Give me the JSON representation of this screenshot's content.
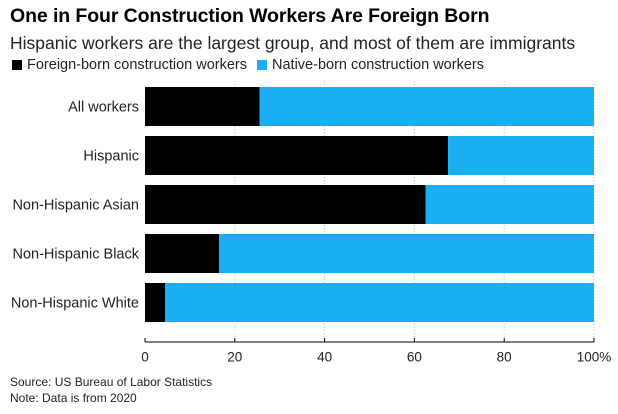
{
  "title": "One in Four Construction Workers Are Foreign Born",
  "subtitle": "Hispanic workers are the largest group, and most of them are immigrants",
  "legend": {
    "foreign_label": "Foreign-born construction workers",
    "native_label": "Native-born construction workers"
  },
  "colors": {
    "foreign": "#000000",
    "native": "#1aaef2"
  },
  "footer": {
    "source": "Source: US Bureau of Labor Statistics",
    "note": "Note: Data is from 2020"
  },
  "chart_data": {
    "type": "bar",
    "orientation": "horizontal",
    "stacked": true,
    "categories": [
      "All workers",
      "Hispanic",
      "Non-Hispanic Asian",
      "Non-Hispanic Black",
      "Non-Hispanic White"
    ],
    "series": [
      {
        "name": "Foreign-born construction workers",
        "values": [
          25.5,
          67.5,
          62.5,
          16.5,
          4.5
        ]
      },
      {
        "name": "Native-born construction workers",
        "values": [
          74.5,
          32.5,
          37.5,
          83.5,
          95.5
        ]
      }
    ],
    "xlim": [
      0,
      100
    ],
    "xticks": [
      0,
      20,
      40,
      60,
      80,
      100
    ],
    "xtick_labels": [
      "0",
      "20",
      "40",
      "60",
      "80",
      "100%"
    ],
    "legend_position": "top-left",
    "grid": true
  }
}
